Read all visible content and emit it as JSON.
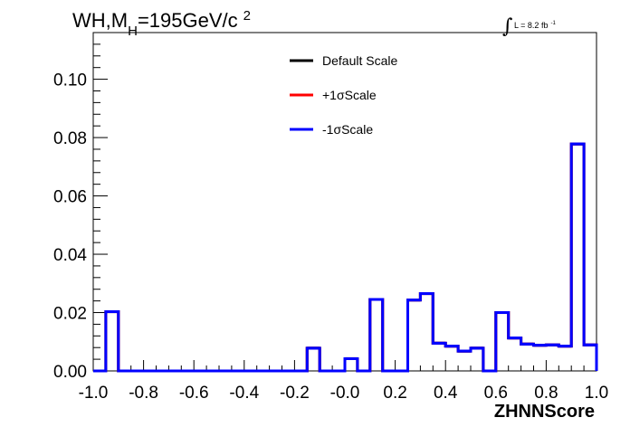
{
  "chart_data": {
    "type": "histogram",
    "title": {
      "prefix": "WH,M",
      "subscript": "H",
      "value": "=195GeV/c",
      "superscript": "2"
    },
    "luminosity": {
      "symbol": "∫",
      "text": "L = 8.2 fb",
      "superscript": "-1"
    },
    "xlabel": "ZHNNScore",
    "ylabel": "",
    "xlim": [
      -1.0,
      1.0
    ],
    "ylim": [
      0.0,
      0.116
    ],
    "x_ticks": [
      {
        "value": -1.0,
        "label": "-1.0"
      },
      {
        "value": -0.8,
        "label": "-0.8"
      },
      {
        "value": -0.6,
        "label": "-0.6"
      },
      {
        "value": -0.4,
        "label": "-0.4"
      },
      {
        "value": -0.2,
        "label": "-0.2"
      },
      {
        "value": 0.0,
        "label": "-0.0"
      },
      {
        "value": 0.2,
        "label": "0.2"
      },
      {
        "value": 0.4,
        "label": "0.4"
      },
      {
        "value": 0.6,
        "label": "0.6"
      },
      {
        "value": 0.8,
        "label": "0.8"
      },
      {
        "value": 1.0,
        "label": "1.0"
      }
    ],
    "y_ticks": [
      {
        "value": 0.0,
        "label": "0.00"
      },
      {
        "value": 0.02,
        "label": "0.02"
      },
      {
        "value": 0.04,
        "label": "0.04"
      },
      {
        "value": 0.06,
        "label": "0.06"
      },
      {
        "value": 0.08,
        "label": "0.08"
      },
      {
        "value": 0.1,
        "label": "0.10"
      }
    ],
    "bin_edges": [
      -1.0,
      -0.95,
      -0.9,
      -0.85,
      -0.8,
      -0.75,
      -0.7,
      -0.65,
      -0.6,
      -0.55,
      -0.5,
      -0.45,
      -0.4,
      -0.35,
      -0.3,
      -0.25,
      -0.2,
      -0.15,
      -0.1,
      -0.05,
      0.0,
      0.05,
      0.1,
      0.15,
      0.2,
      0.25,
      0.3,
      0.35,
      0.4,
      0.45,
      0.5,
      0.55,
      0.6,
      0.65,
      0.7,
      0.75,
      0.8,
      0.85,
      0.9,
      0.95,
      1.0
    ],
    "series": [
      {
        "name": "Default Scale",
        "color": "#000000",
        "values": [
          0,
          0.0203,
          0,
          0,
          0,
          0,
          0,
          0,
          0,
          0,
          0,
          0,
          0,
          0,
          0,
          0,
          0,
          0.0078,
          0,
          0,
          0.0042,
          0,
          0.0245,
          0,
          0,
          0.0243,
          0.0265,
          0.0095,
          0.0085,
          0.0068,
          0.0078,
          0,
          0.02,
          0.0113,
          0.0092,
          0.0088,
          0.0089,
          0.0085,
          0.0778,
          0.0089
        ]
      },
      {
        "name": "+1σScale",
        "color": "#ff0000",
        "values": [
          0,
          0.0203,
          0,
          0,
          0,
          0,
          0,
          0,
          0,
          0,
          0,
          0,
          0,
          0,
          0,
          0,
          0,
          0.0078,
          0,
          0,
          0.0042,
          0,
          0.0245,
          0,
          0,
          0.0243,
          0.0265,
          0.0095,
          0.0085,
          0.0068,
          0.0078,
          0,
          0.02,
          0.0113,
          0.0092,
          0.0088,
          0.0089,
          0.0085,
          0.0778,
          0.0089
        ]
      },
      {
        "name": "-1σScale",
        "color": "#0000ff",
        "values": [
          0,
          0.0203,
          0,
          0,
          0,
          0,
          0,
          0,
          0,
          0,
          0,
          0,
          0,
          0,
          0,
          0,
          0,
          0.0078,
          0,
          0,
          0.0042,
          0,
          0.0245,
          0,
          0,
          0.0243,
          0.0265,
          0.0095,
          0.0085,
          0.0068,
          0.0078,
          0,
          0.02,
          0.0113,
          0.0092,
          0.0088,
          0.0089,
          0.0085,
          0.0778,
          0.0089
        ]
      }
    ],
    "legend": {
      "placement": "top-center",
      "entries": [
        {
          "label": "Default Scale",
          "color": "#000000"
        },
        {
          "label": "+1σScale",
          "color": "#ff0000"
        },
        {
          "label": "-1σScale",
          "color": "#0000ff"
        }
      ]
    },
    "grid": false
  }
}
